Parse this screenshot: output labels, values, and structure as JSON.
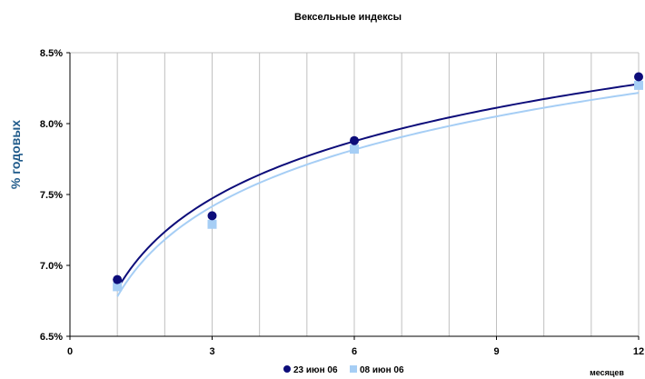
{
  "chart_data": {
    "type": "scatter",
    "title": "Вексельные индексы",
    "xlabel": "месяцев",
    "ylabel": "% годовых",
    "xlim": [
      0,
      12
    ],
    "ylim": [
      6.5,
      8.5
    ],
    "x_ticks": [
      "0",
      "3",
      "6",
      "9",
      "12"
    ],
    "y_ticks": [
      "6.5%",
      "7.0%",
      "7.5%",
      "8.0%",
      "8.5%"
    ],
    "grid": "vertical",
    "legend_position": "bottom",
    "series": [
      {
        "name": "23 июн 06",
        "color": "#0d0d7a",
        "marker": "circle",
        "x": [
          1,
          3,
          6,
          12
        ],
        "y": [
          6.9,
          7.35,
          7.88,
          8.33
        ],
        "trend": "logarithmic"
      },
      {
        "name": "08 июн 06",
        "color": "#a6cef5",
        "marker": "square",
        "x": [
          1,
          3,
          6,
          12
        ],
        "y": [
          6.85,
          7.29,
          7.82,
          8.27
        ],
        "trend": "logarithmic"
      }
    ]
  }
}
